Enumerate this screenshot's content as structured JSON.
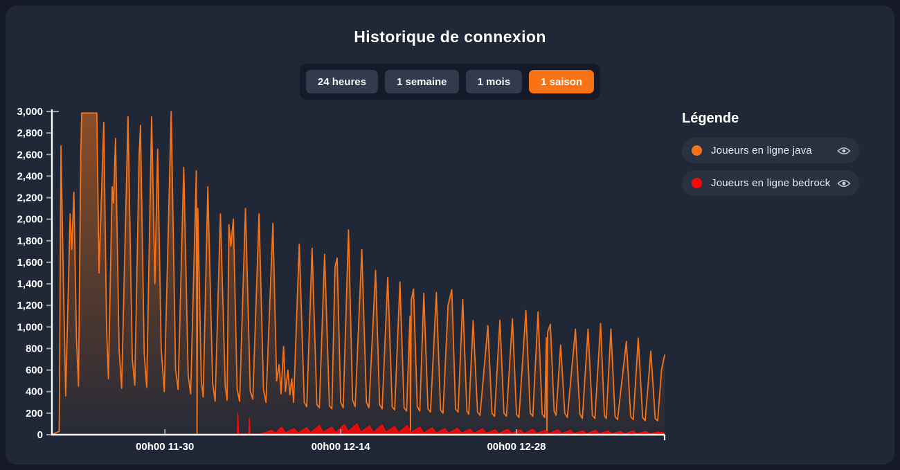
{
  "page": {
    "title": "Historique de connexion"
  },
  "time_range_buttons": [
    {
      "label": "24 heures",
      "active": false
    },
    {
      "label": "1 semaine",
      "active": false
    },
    {
      "label": "1 mois",
      "active": false
    },
    {
      "label": "1 saison",
      "active": true
    }
  ],
  "legend": {
    "title": "Légende",
    "items": [
      {
        "label": "Joueurs en ligne java",
        "color": "#f97316"
      },
      {
        "label": "Joueurs en ligne bedrock",
        "color": "#ff0707"
      }
    ]
  },
  "colors": {
    "accent_orange": "#f97316",
    "series_red": "#ff0707",
    "card_background": "#202837",
    "page_background": "#141827",
    "button_background": "#323b4e",
    "button_group_background": "#151a28",
    "axis": "#ffffff",
    "tick": "#9aa3b2"
  },
  "chart_data": {
    "type": "area",
    "title": "Historique de connexion",
    "xlabel": "",
    "ylabel": "",
    "grid": false,
    "legend_position": "right",
    "ylim": [
      0,
      3000
    ],
    "xlim": [
      0,
      48.8
    ],
    "y_ticks": [
      0,
      200,
      400,
      600,
      800,
      1000,
      1200,
      1400,
      1600,
      1800,
      2000,
      2200,
      2400,
      2600,
      2800,
      3000
    ],
    "x_ticks": [
      {
        "day": 9,
        "label": "00h00 11-30"
      },
      {
        "day": 23,
        "label": "00h00 12-14"
      },
      {
        "day": 37,
        "label": "00h00 12-28"
      }
    ],
    "x_unit": "days",
    "series": [
      {
        "name": "Joueurs en ligne java",
        "color": "#f97316",
        "points": [
          [
            0,
            0
          ],
          [
            0.45,
            25
          ],
          [
            0.58,
            30
          ],
          [
            0.72,
            2680
          ],
          [
            0.9,
            1500
          ],
          [
            1.1,
            360
          ],
          [
            1.45,
            2050
          ],
          [
            1.58,
            1720
          ],
          [
            1.75,
            2250
          ],
          [
            1.95,
            900
          ],
          [
            2.12,
            450
          ],
          [
            2.3,
            2600
          ],
          [
            2.37,
            2985
          ],
          [
            3.58,
            2985
          ],
          [
            3.75,
            1500
          ],
          [
            4.13,
            2900
          ],
          [
            4.35,
            1000
          ],
          [
            4.5,
            520
          ],
          [
            4.8,
            2300
          ],
          [
            4.9,
            2150
          ],
          [
            5.07,
            2750
          ],
          [
            5.35,
            800
          ],
          [
            5.55,
            430
          ],
          [
            6.06,
            2950
          ],
          [
            6.4,
            700
          ],
          [
            6.6,
            460
          ],
          [
            6.95,
            2600
          ],
          [
            7.05,
            2870
          ],
          [
            7.35,
            750
          ],
          [
            7.55,
            440
          ],
          [
            7.94,
            2950
          ],
          [
            8.2,
            1400
          ],
          [
            8.42,
            2650
          ],
          [
            8.7,
            800
          ],
          [
            8.95,
            400
          ],
          [
            9.5,
            3000
          ],
          [
            9.85,
            600
          ],
          [
            10.05,
            420
          ],
          [
            10.5,
            2480
          ],
          [
            10.85,
            550
          ],
          [
            11.05,
            380
          ],
          [
            11.5,
            2450
          ],
          [
            11.56,
            0
          ],
          [
            11.62,
            2100
          ],
          [
            11.9,
            500
          ],
          [
            12.05,
            350
          ],
          [
            12.42,
            2300
          ],
          [
            12.8,
            480
          ],
          [
            13.0,
            310
          ],
          [
            13.42,
            2050
          ],
          [
            13.8,
            450
          ],
          [
            13.95,
            320
          ],
          [
            14.1,
            1950
          ],
          [
            14.25,
            1750
          ],
          [
            14.45,
            2000
          ],
          [
            14.75,
            420
          ],
          [
            14.95,
            310
          ],
          [
            15.42,
            2100
          ],
          [
            15.8,
            400
          ],
          [
            16.0,
            330
          ],
          [
            16.5,
            2050
          ],
          [
            16.85,
            420
          ],
          [
            17.05,
            300
          ],
          [
            17.6,
            1960
          ],
          [
            17.9,
            500
          ],
          [
            18.1,
            650
          ],
          [
            18.25,
            380
          ],
          [
            18.45,
            820
          ],
          [
            18.6,
            400
          ],
          [
            18.8,
            600
          ],
          [
            18.95,
            370
          ],
          [
            19.1,
            520
          ],
          [
            19.25,
            300
          ],
          [
            19.7,
            1770
          ],
          [
            20.1,
            300
          ],
          [
            20.3,
            260
          ],
          [
            20.72,
            1730
          ],
          [
            21.1,
            280
          ],
          [
            21.3,
            250
          ],
          [
            21.72,
            1675
          ],
          [
            22.1,
            270
          ],
          [
            22.3,
            240
          ],
          [
            22.55,
            1560
          ],
          [
            22.72,
            1640
          ],
          [
            23.0,
            300
          ],
          [
            23.2,
            250
          ],
          [
            23.62,
            1900
          ],
          [
            23.95,
            320
          ],
          [
            24.15,
            260
          ],
          [
            24.68,
            1717
          ],
          [
            25.05,
            300
          ],
          [
            25.25,
            250
          ],
          [
            25.78,
            1525
          ],
          [
            26.1,
            280
          ],
          [
            26.3,
            240
          ],
          [
            26.75,
            1460
          ],
          [
            27.1,
            260
          ],
          [
            27.3,
            230
          ],
          [
            27.72,
            1417
          ],
          [
            28.05,
            250
          ],
          [
            28.25,
            220
          ],
          [
            28.52,
            1100
          ],
          [
            28.56,
            0
          ],
          [
            28.62,
            1250
          ],
          [
            28.8,
            1352
          ],
          [
            29.1,
            260
          ],
          [
            29.3,
            220
          ],
          [
            29.62,
            1313
          ],
          [
            29.95,
            240
          ],
          [
            30.15,
            210
          ],
          [
            30.62,
            1320
          ],
          [
            30.95,
            230
          ],
          [
            31.15,
            200
          ],
          [
            31.55,
            1200
          ],
          [
            31.85,
            1345
          ],
          [
            32.15,
            240
          ],
          [
            32.35,
            210
          ],
          [
            32.72,
            1255
          ],
          [
            33.05,
            220
          ],
          [
            33.2,
            190
          ],
          [
            33.55,
            1060
          ],
          [
            33.9,
            210
          ],
          [
            34.1,
            180
          ],
          [
            34.72,
            1012
          ],
          [
            35.05,
            200
          ],
          [
            35.25,
            170
          ],
          [
            35.68,
            1063
          ],
          [
            36.0,
            200
          ],
          [
            36.2,
            170
          ],
          [
            36.68,
            1076
          ],
          [
            37.0,
            190
          ],
          [
            37.2,
            160
          ],
          [
            37.75,
            1153
          ],
          [
            38.1,
            200
          ],
          [
            38.3,
            170
          ],
          [
            38.72,
            1140
          ],
          [
            39.05,
            190
          ],
          [
            39.25,
            160
          ],
          [
            39.38,
            900
          ],
          [
            39.42,
            0
          ],
          [
            39.48,
            950
          ],
          [
            39.7,
            1025
          ],
          [
            40.0,
            220
          ],
          [
            40.15,
            180
          ],
          [
            40.52,
            832
          ],
          [
            40.85,
            200
          ],
          [
            41.05,
            160
          ],
          [
            41.7,
            980
          ],
          [
            42.05,
            190
          ],
          [
            42.25,
            150
          ],
          [
            42.7,
            980
          ],
          [
            43.05,
            180
          ],
          [
            43.25,
            150
          ],
          [
            43.7,
            1032
          ],
          [
            44.0,
            180
          ],
          [
            44.15,
            150
          ],
          [
            44.52,
            980
          ],
          [
            44.85,
            170
          ],
          [
            45.05,
            140
          ],
          [
            45.75,
            865
          ],
          [
            46.1,
            170
          ],
          [
            46.3,
            140
          ],
          [
            46.7,
            897
          ],
          [
            47.05,
            160
          ],
          [
            47.25,
            130
          ],
          [
            47.7,
            775
          ],
          [
            48.05,
            150
          ],
          [
            48.25,
            130
          ],
          [
            48.55,
            600
          ],
          [
            48.8,
            743
          ]
        ]
      },
      {
        "name": "Joueurs en ligne bedrock",
        "color": "#ff0707",
        "points": [
          [
            14.78,
            0
          ],
          [
            14.8,
            200
          ],
          [
            14.86,
            5
          ],
          [
            15.68,
            5
          ],
          [
            15.72,
            150
          ],
          [
            15.78,
            5
          ],
          [
            16.6,
            4
          ],
          [
            17.5,
            40
          ],
          [
            17.8,
            12
          ],
          [
            18.3,
            70
          ],
          [
            18.6,
            18
          ],
          [
            19.3,
            55
          ],
          [
            19.6,
            15
          ],
          [
            20.3,
            65
          ],
          [
            20.6,
            18
          ],
          [
            21.3,
            85
          ],
          [
            21.6,
            22
          ],
          [
            22.3,
            70
          ],
          [
            22.6,
            18
          ],
          [
            23.3,
            95
          ],
          [
            23.6,
            28
          ],
          [
            24.3,
            100
          ],
          [
            24.6,
            24
          ],
          [
            25.3,
            80
          ],
          [
            25.6,
            20
          ],
          [
            26.3,
            90
          ],
          [
            26.6,
            22
          ],
          [
            27.3,
            75
          ],
          [
            27.6,
            18
          ],
          [
            28.3,
            85
          ],
          [
            28.6,
            20
          ],
          [
            29.3,
            70
          ],
          [
            29.6,
            16
          ],
          [
            30.3,
            65
          ],
          [
            30.6,
            15
          ],
          [
            31.3,
            55
          ],
          [
            31.6,
            14
          ],
          [
            32.3,
            60
          ],
          [
            32.6,
            14
          ],
          [
            33.3,
            50
          ],
          [
            33.6,
            12
          ],
          [
            34.3,
            55
          ],
          [
            34.6,
            13
          ],
          [
            35.3,
            45
          ],
          [
            35.6,
            11
          ],
          [
            36.3,
            50
          ],
          [
            36.6,
            13
          ],
          [
            37.3,
            45
          ],
          [
            37.6,
            11
          ],
          [
            38.3,
            50
          ],
          [
            38.6,
            11
          ],
          [
            39.3,
            40
          ],
          [
            39.6,
            10
          ],
          [
            40.3,
            45
          ],
          [
            40.6,
            11
          ],
          [
            41.3,
            40
          ],
          [
            41.6,
            10
          ],
          [
            42.3,
            35
          ],
          [
            42.6,
            9
          ],
          [
            43.3,
            40
          ],
          [
            43.6,
            9
          ],
          [
            44.3,
            35
          ],
          [
            44.6,
            9
          ],
          [
            45.3,
            30
          ],
          [
            45.6,
            8
          ],
          [
            46.3,
            35
          ],
          [
            46.6,
            8
          ],
          [
            47.3,
            30
          ],
          [
            47.6,
            8
          ],
          [
            48.3,
            25
          ],
          [
            48.8,
            15
          ]
        ]
      }
    ]
  }
}
